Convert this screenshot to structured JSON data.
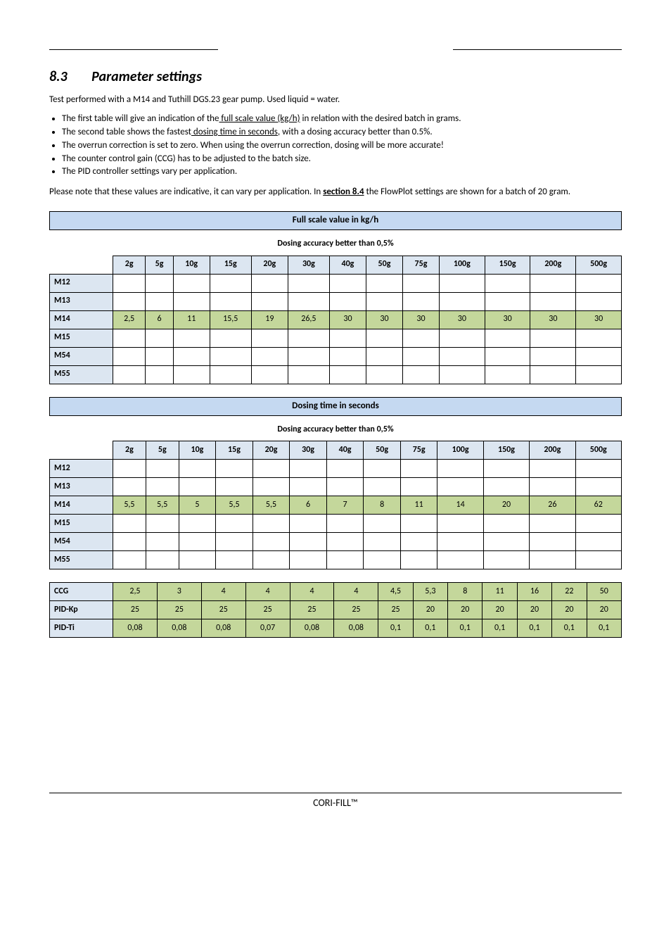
{
  "section": {
    "num": "8.3",
    "title": "Parameter settings"
  },
  "intro": "Test performed with a M14 and Tuthill DGS.23 gear pump. Used liquid = water.",
  "bullets": [
    {
      "pre": "The first table will give an indication of the",
      "u": " full scale value (kg/h)",
      "post": " in relation with the desired batch in grams."
    },
    {
      "pre": "The second table shows the fastest",
      "u": " dosing time in seconds",
      "post": ", with a dosing accuracy better than 0.5%."
    },
    {
      "pre": "The overrun correction is set to zero. When using the overrun correction, dosing will be more accurate!",
      "u": "",
      "post": ""
    },
    {
      "pre": "The counter control gain (CCG) has to be adjusted to the batch size.",
      "u": "",
      "post": ""
    },
    {
      "pre": "The PID controller settings vary per application.",
      "u": "",
      "post": ""
    }
  ],
  "note": {
    "pre": "Please note that these values are indicative, it can vary per application. In ",
    "link": "section 8.4",
    "post": " the FlowPlot settings are shown for a batch of 20 gram."
  },
  "grams_header": [
    "2g",
    "5g",
    "10g",
    "15g",
    "20g",
    "30g",
    "40g",
    "50g",
    "75g",
    "100g",
    "150g",
    "200g",
    "500g"
  ],
  "table1": {
    "banner": "Full scale value in kg/h",
    "subcap": "Dosing accuracy better than 0,5%",
    "rows": [
      {
        "label": "M12",
        "vals": [
          "",
          "",
          "",
          "",
          "",
          "",
          "",
          "",
          "",
          "",
          "",
          "",
          ""
        ]
      },
      {
        "label": "M13",
        "vals": [
          "",
          "",
          "",
          "",
          "",
          "",
          "",
          "",
          "",
          "",
          "",
          "",
          ""
        ]
      },
      {
        "label": "M14",
        "vals": [
          "2,5",
          "6",
          "11",
          "15,5",
          "19",
          "26,5",
          "30",
          "30",
          "30",
          "30",
          "30",
          "30",
          "30"
        ]
      },
      {
        "label": "M15",
        "vals": [
          "",
          "",
          "",
          "",
          "",
          "",
          "",
          "",
          "",
          "",
          "",
          "",
          ""
        ]
      },
      {
        "label": "M54",
        "vals": [
          "",
          "",
          "",
          "",
          "",
          "",
          "",
          "",
          "",
          "",
          "",
          "",
          ""
        ]
      },
      {
        "label": "M55",
        "vals": [
          "",
          "",
          "",
          "",
          "",
          "",
          "",
          "",
          "",
          "",
          "",
          "",
          ""
        ]
      }
    ]
  },
  "table2": {
    "banner": "Dosing time in seconds",
    "subcap": "Dosing accuracy better than 0,5%",
    "rows": [
      {
        "label": "M12",
        "vals": [
          "",
          "",
          "",
          "",
          "",
          "",
          "",
          "",
          "",
          "",
          "",
          "",
          ""
        ]
      },
      {
        "label": "M13",
        "vals": [
          "",
          "",
          "",
          "",
          "",
          "",
          "",
          "",
          "",
          "",
          "",
          "",
          ""
        ]
      },
      {
        "label": "M14",
        "vals": [
          "5,5",
          "5,5",
          "5",
          "5,5",
          "5,5",
          "6",
          "7",
          "8",
          "11",
          "14",
          "20",
          "26",
          "62"
        ]
      },
      {
        "label": "M15",
        "vals": [
          "",
          "",
          "",
          "",
          "",
          "",
          "",
          "",
          "",
          "",
          "",
          "",
          ""
        ]
      },
      {
        "label": "M54",
        "vals": [
          "",
          "",
          "",
          "",
          "",
          "",
          "",
          "",
          "",
          "",
          "",
          "",
          ""
        ]
      },
      {
        "label": "M55",
        "vals": [
          "",
          "",
          "",
          "",
          "",
          "",
          "",
          "",
          "",
          "",
          "",
          "",
          ""
        ]
      }
    ]
  },
  "table3": {
    "rows": [
      {
        "label": "CCG",
        "vals": [
          "2,5",
          "3",
          "4",
          "4",
          "4",
          "4",
          "4,5",
          "5,3",
          "8",
          "11",
          "16",
          "22",
          "50"
        ]
      },
      {
        "label": "PID-Kp",
        "vals": [
          "25",
          "25",
          "25",
          "25",
          "25",
          "25",
          "25",
          "20",
          "20",
          "20",
          "20",
          "20",
          "20"
        ]
      },
      {
        "label": "PID-Ti",
        "vals": [
          "0,08",
          "0,08",
          "0,08",
          "0,07",
          "0,08",
          "0,08",
          "0,1",
          "0,1",
          "0,1",
          "0,1",
          "0,1",
          "0,1",
          "0,1"
        ]
      }
    ]
  },
  "colors": {
    "header_bg": "#dce6f1",
    "value_bg": "#c4d79b",
    "banner_bg": "#c5d9f1"
  },
  "footer": "CORI-FILL™"
}
